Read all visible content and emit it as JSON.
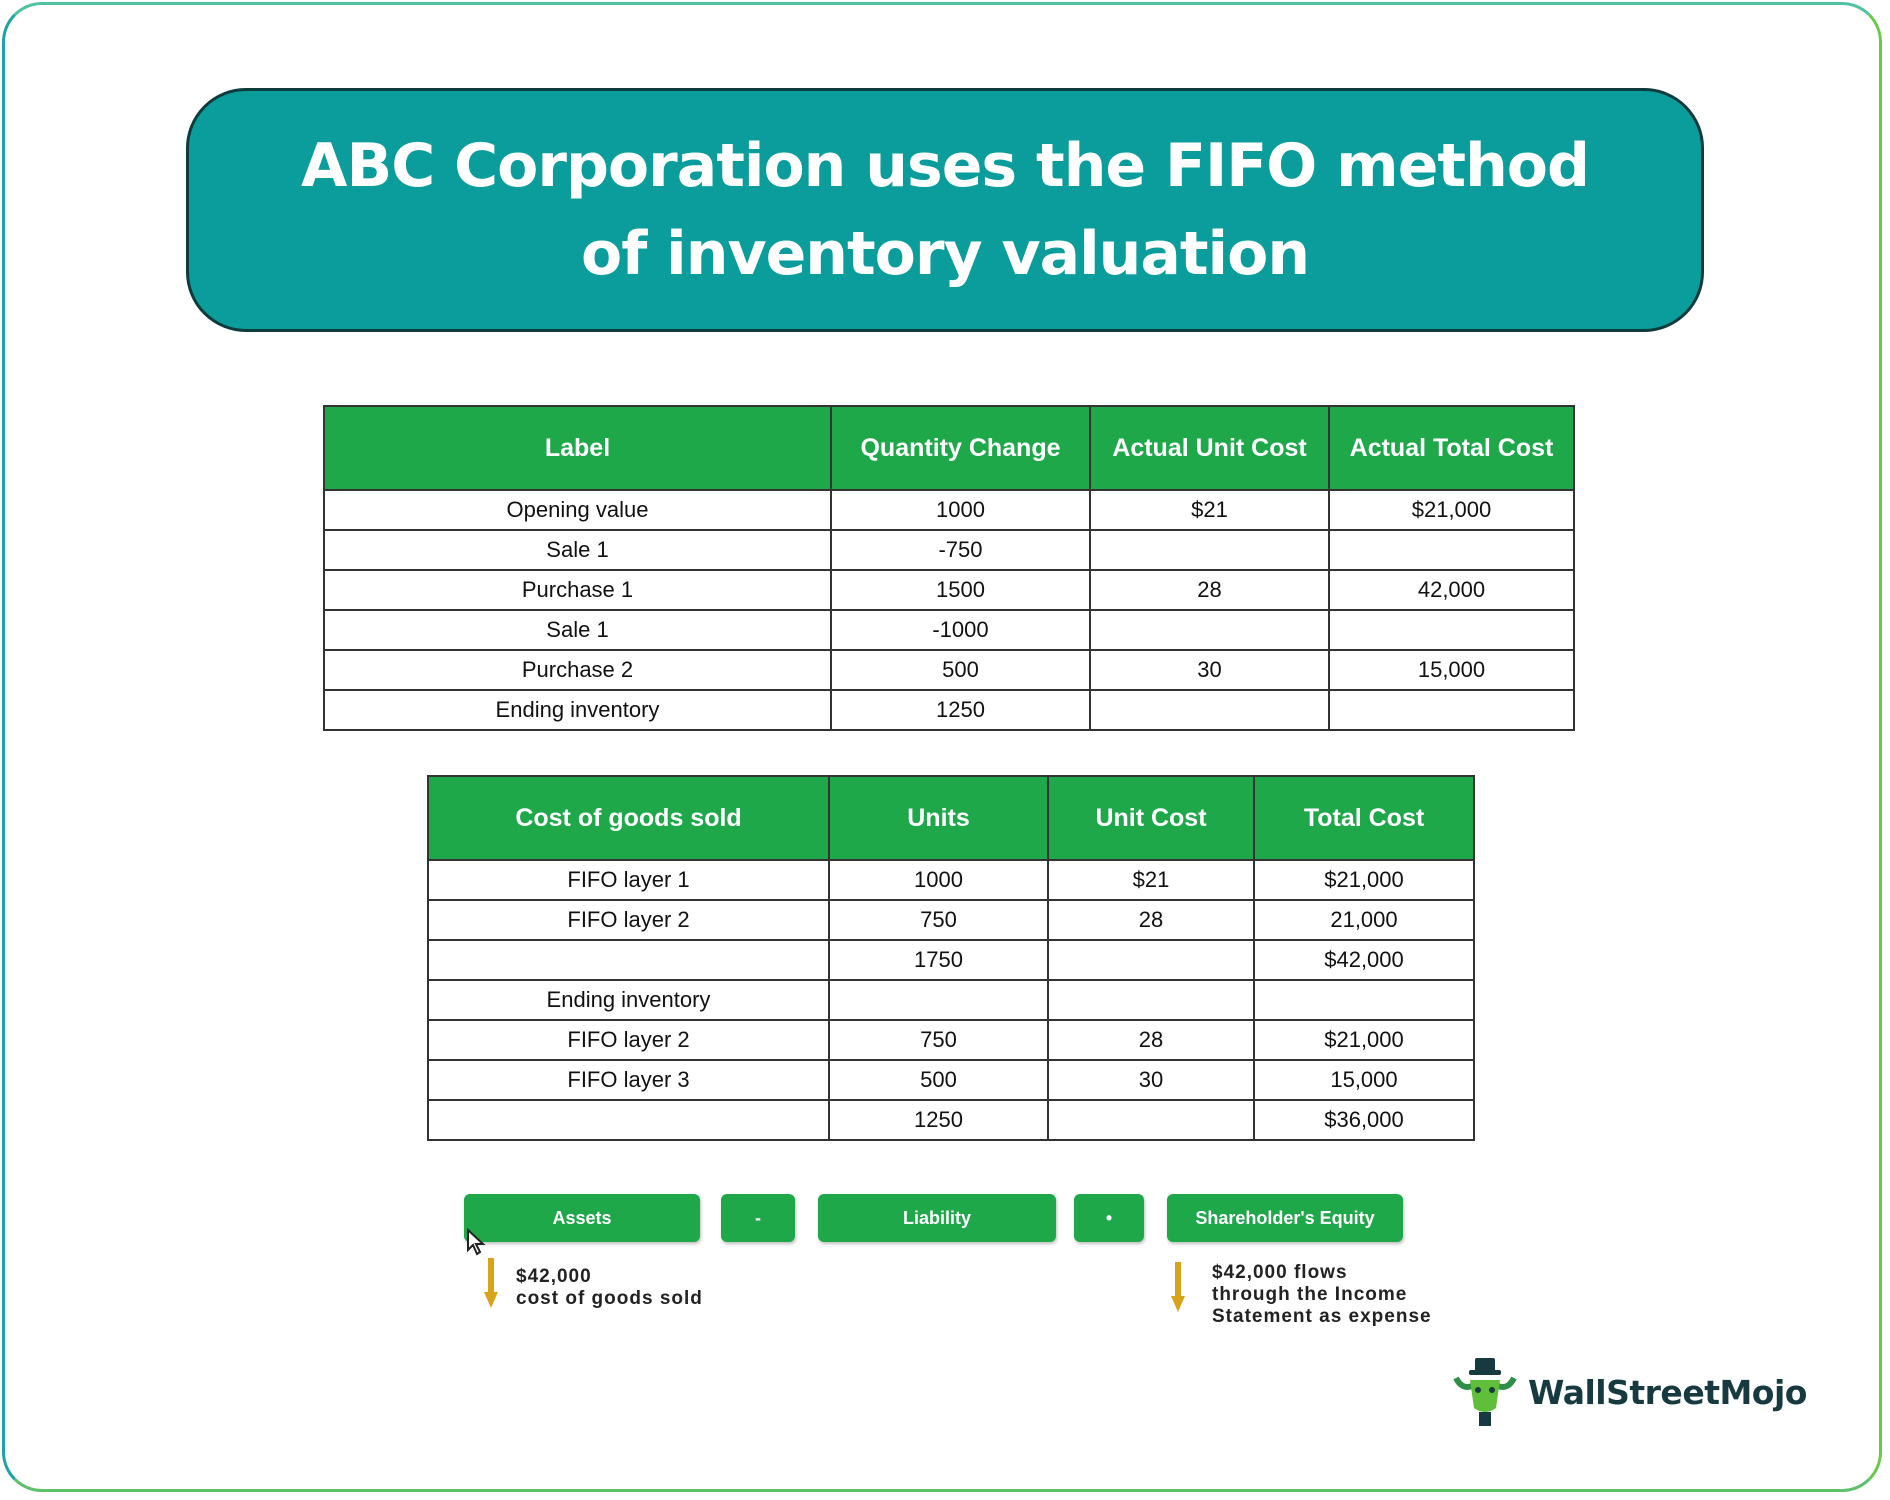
{
  "title": "ABC Corporation uses the FIFO method\nof inventory valuation",
  "table1": {
    "headers": [
      "Label",
      "Quantity Change",
      "Actual Unit Cost",
      "Actual Total Cost"
    ],
    "rows": [
      [
        "Opening value",
        "1000",
        "$21",
        "$21,000"
      ],
      [
        "Sale 1",
        "-750",
        "",
        ""
      ],
      [
        "Purchase 1",
        "1500",
        "28",
        "42,000"
      ],
      [
        "Sale 1",
        "-1000",
        "",
        ""
      ],
      [
        "Purchase 2",
        "500",
        "30",
        "15,000"
      ],
      [
        "Ending inventory",
        "1250",
        "",
        ""
      ]
    ]
  },
  "table2": {
    "headers": [
      "Cost of goods sold",
      "Units",
      "Unit Cost",
      "Total Cost"
    ],
    "rows": [
      [
        "FIFO layer 1",
        "1000",
        "$21",
        "$21,000"
      ],
      [
        "FIFO layer 2",
        "750",
        "28",
        "21,000"
      ],
      [
        "",
        "1750",
        "",
        "$42,000"
      ],
      [
        "Ending inventory",
        "",
        "",
        ""
      ],
      [
        "FIFO layer 2",
        "750",
        "28",
        "$21,000"
      ],
      [
        "FIFO layer 3",
        "500",
        "30",
        "15,000"
      ],
      [
        "",
        "1250",
        "",
        "$36,000"
      ]
    ]
  },
  "equation": {
    "assets": "Assets",
    "op1": "-",
    "liability": "Liability",
    "op2": "•",
    "equity": "Shareholder's Equity"
  },
  "notes": {
    "left": "$42,000\ncost of goods sold",
    "right": "$42,000 flows\nthrough the Income\nStatement as expense"
  },
  "brand": {
    "name": "WallStreetMojo"
  },
  "colors": {
    "title_bg": "#0b9c9c",
    "header_green": "#1ea84a",
    "arrow_gold": "#d9a21b",
    "brand_dark": "#173a40"
  }
}
